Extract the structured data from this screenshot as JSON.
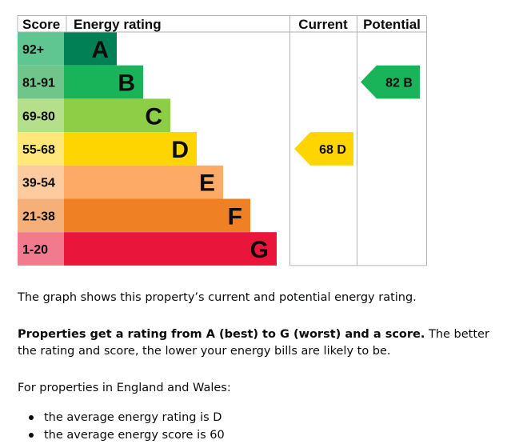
{
  "chart": {
    "headers": {
      "score": "Score",
      "rating": "Energy rating",
      "current": "Current",
      "potential": "Potential"
    },
    "bands": [
      {
        "score": "92+",
        "letter": "A",
        "color": "#008054",
        "score_bg": "#5fc591",
        "text_color": "#0b0c0c"
      },
      {
        "score": "81-91",
        "letter": "B",
        "color": "#19b459",
        "score_bg": "#70c58a",
        "text_color": "#0b0c0c"
      },
      {
        "score": "69-80",
        "letter": "C",
        "color": "#8dce46",
        "score_bg": "#b5df8a",
        "text_color": "#0b0c0c"
      },
      {
        "score": "55-68",
        "letter": "D",
        "color": "#ffd500",
        "score_bg": "#ffe77a",
        "text_color": "#0b0c0c"
      },
      {
        "score": "39-54",
        "letter": "E",
        "color": "#fcaa65",
        "score_bg": "#fdcba0",
        "text_color": "#0b0c0c"
      },
      {
        "score": "21-38",
        "letter": "F",
        "color": "#ef8023",
        "score_bg": "#f5b07a",
        "text_color": "#0b0c0c"
      },
      {
        "score": "1-20",
        "letter": "G",
        "color": "#e9153b",
        "score_bg": "#f27a8e",
        "text_color": "#0b0c0c"
      }
    ],
    "current": {
      "score": 68,
      "letter": "D",
      "label": "68 D",
      "color": "#ffd500"
    },
    "potential": {
      "score": 82,
      "letter": "B",
      "label": "82 B",
      "color": "#19b459"
    }
  },
  "text": {
    "p1": "The graph shows this property’s current and potential energy rating.",
    "p2_bold": "Properties get a rating from A (best) to G (worst) and a score.",
    "p2_rest": " The better the rating and score, the lower your energy bills are likely to be.",
    "p3": "For properties in England and Wales:",
    "bullets": [
      "the average energy rating is D",
      "the average energy score is 60"
    ]
  }
}
